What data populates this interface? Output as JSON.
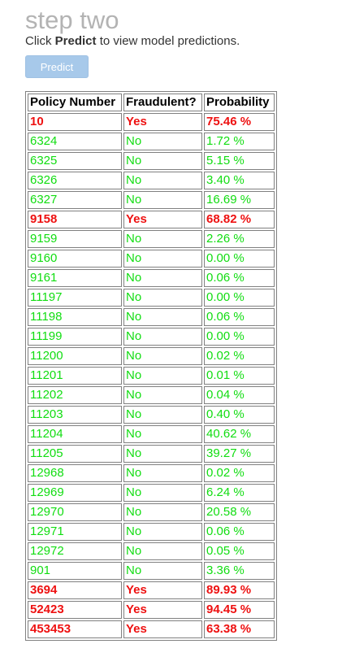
{
  "header": {
    "title": "step two",
    "instruction_prefix": "Click ",
    "instruction_bold": "Predict",
    "instruction_suffix": " to view model predictions."
  },
  "predict_button": {
    "label": "Predict"
  },
  "colors": {
    "fraud": "#ee1111",
    "not_fraud": "#11dd11",
    "button_bg": "#a7c9ea",
    "title": "#b3b3b3"
  },
  "table": {
    "headers": [
      "Policy Number",
      "Fraudulent?",
      "Probability"
    ],
    "rows": [
      {
        "policy": "10",
        "fraud": "Yes",
        "prob": "75.46 %"
      },
      {
        "policy": "6324",
        "fraud": "No",
        "prob": "1.72 %"
      },
      {
        "policy": "6325",
        "fraud": "No",
        "prob": "5.15 %"
      },
      {
        "policy": "6326",
        "fraud": "No",
        "prob": "3.40 %"
      },
      {
        "policy": "6327",
        "fraud": "No",
        "prob": "16.69 %"
      },
      {
        "policy": "9158",
        "fraud": "Yes",
        "prob": "68.82 %"
      },
      {
        "policy": "9159",
        "fraud": "No",
        "prob": "2.26 %"
      },
      {
        "policy": "9160",
        "fraud": "No",
        "prob": "0.00 %"
      },
      {
        "policy": "9161",
        "fraud": "No",
        "prob": "0.06 %"
      },
      {
        "policy": "11197",
        "fraud": "No",
        "prob": "0.00 %"
      },
      {
        "policy": "11198",
        "fraud": "No",
        "prob": "0.06 %"
      },
      {
        "policy": "11199",
        "fraud": "No",
        "prob": "0.00 %"
      },
      {
        "policy": "11200",
        "fraud": "No",
        "prob": "0.02 %"
      },
      {
        "policy": "11201",
        "fraud": "No",
        "prob": "0.01 %"
      },
      {
        "policy": "11202",
        "fraud": "No",
        "prob": "0.04 %"
      },
      {
        "policy": "11203",
        "fraud": "No",
        "prob": "0.40 %"
      },
      {
        "policy": "11204",
        "fraud": "No",
        "prob": "40.62 %"
      },
      {
        "policy": "11205",
        "fraud": "No",
        "prob": "39.27 %"
      },
      {
        "policy": "12968",
        "fraud": "No",
        "prob": "0.02 %"
      },
      {
        "policy": "12969",
        "fraud": "No",
        "prob": "6.24 %"
      },
      {
        "policy": "12970",
        "fraud": "No",
        "prob": "20.58 %"
      },
      {
        "policy": "12971",
        "fraud": "No",
        "prob": "0.06 %"
      },
      {
        "policy": "12972",
        "fraud": "No",
        "prob": "0.05 %"
      },
      {
        "policy": "901",
        "fraud": "No",
        "prob": "3.36 %"
      },
      {
        "policy": "3694",
        "fraud": "Yes",
        "prob": "89.93 %"
      },
      {
        "policy": "52423",
        "fraud": "Yes",
        "prob": "94.45 %"
      },
      {
        "policy": "453453",
        "fraud": "Yes",
        "prob": "63.38 %"
      }
    ]
  }
}
